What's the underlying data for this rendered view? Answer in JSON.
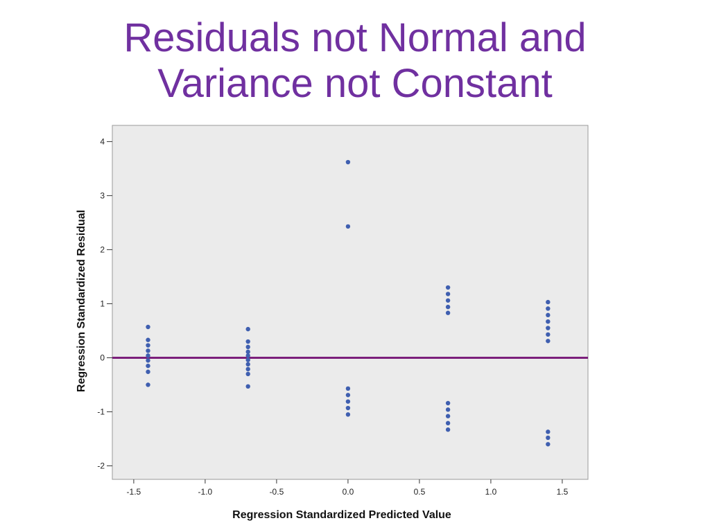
{
  "slide": {
    "title_line1": "Residuals not Normal and",
    "title_line2": "Variance not Constant"
  },
  "colors": {
    "title": "#7030a0",
    "point": "#3f5fb0",
    "reference_line": "#7b1f7b",
    "plot_background": "#ebebeb"
  },
  "chart_data": {
    "type": "scatter",
    "title": "",
    "xlabel": "Regression Standardized Predicted Value",
    "ylabel": "Regression Standardized Residual",
    "xlim": [
      -1.65,
      1.68
    ],
    "ylim": [
      -2.25,
      4.3
    ],
    "xticks": [
      -1.5,
      -1.0,
      -0.5,
      0.0,
      0.5,
      1.0,
      1.5
    ],
    "xtick_labels": [
      "-1.5",
      "-1.0",
      "-0.5",
      "0.0",
      "0.5",
      "1.0",
      "1.5"
    ],
    "yticks": [
      -2,
      -1,
      0,
      1,
      2,
      3,
      4
    ],
    "ytick_labels": [
      "-2",
      "-1",
      "0",
      "1",
      "2",
      "3",
      "4"
    ],
    "grid": false,
    "reference_line_y": 0,
    "points": [
      {
        "x": -1.4,
        "y": 0.57
      },
      {
        "x": -1.4,
        "y": 0.33
      },
      {
        "x": -1.4,
        "y": 0.23
      },
      {
        "x": -1.4,
        "y": 0.13
      },
      {
        "x": -1.4,
        "y": 0.04
      },
      {
        "x": -1.4,
        "y": -0.05
      },
      {
        "x": -1.4,
        "y": -0.15
      },
      {
        "x": -1.4,
        "y": -0.26
      },
      {
        "x": -1.4,
        "y": -0.5
      },
      {
        "x": -0.7,
        "y": 0.53
      },
      {
        "x": -0.7,
        "y": 0.3
      },
      {
        "x": -0.7,
        "y": 0.2
      },
      {
        "x": -0.7,
        "y": 0.11
      },
      {
        "x": -0.7,
        "y": 0.04
      },
      {
        "x": -0.7,
        "y": -0.04
      },
      {
        "x": -0.7,
        "y": -0.12
      },
      {
        "x": -0.7,
        "y": -0.21
      },
      {
        "x": -0.7,
        "y": -0.3
      },
      {
        "x": -0.7,
        "y": -0.53
      },
      {
        "x": 0.0,
        "y": 3.62
      },
      {
        "x": 0.0,
        "y": 2.43
      },
      {
        "x": 0.0,
        "y": -0.57
      },
      {
        "x": 0.0,
        "y": -0.69
      },
      {
        "x": 0.0,
        "y": -0.81
      },
      {
        "x": 0.0,
        "y": -0.93
      },
      {
        "x": 0.0,
        "y": -1.05
      },
      {
        "x": 0.7,
        "y": 1.3
      },
      {
        "x": 0.7,
        "y": 1.18
      },
      {
        "x": 0.7,
        "y": 1.06
      },
      {
        "x": 0.7,
        "y": 0.94
      },
      {
        "x": 0.7,
        "y": 0.83
      },
      {
        "x": 0.7,
        "y": -0.84
      },
      {
        "x": 0.7,
        "y": -0.96
      },
      {
        "x": 0.7,
        "y": -1.08
      },
      {
        "x": 0.7,
        "y": -1.21
      },
      {
        "x": 0.7,
        "y": -1.33
      },
      {
        "x": 1.4,
        "y": 1.03
      },
      {
        "x": 1.4,
        "y": 0.91
      },
      {
        "x": 1.4,
        "y": 0.79
      },
      {
        "x": 1.4,
        "y": 0.67
      },
      {
        "x": 1.4,
        "y": 0.55
      },
      {
        "x": 1.4,
        "y": 0.43
      },
      {
        "x": 1.4,
        "y": 0.31
      },
      {
        "x": 1.4,
        "y": -1.37
      },
      {
        "x": 1.4,
        "y": -1.48
      },
      {
        "x": 1.4,
        "y": -1.6
      }
    ]
  }
}
